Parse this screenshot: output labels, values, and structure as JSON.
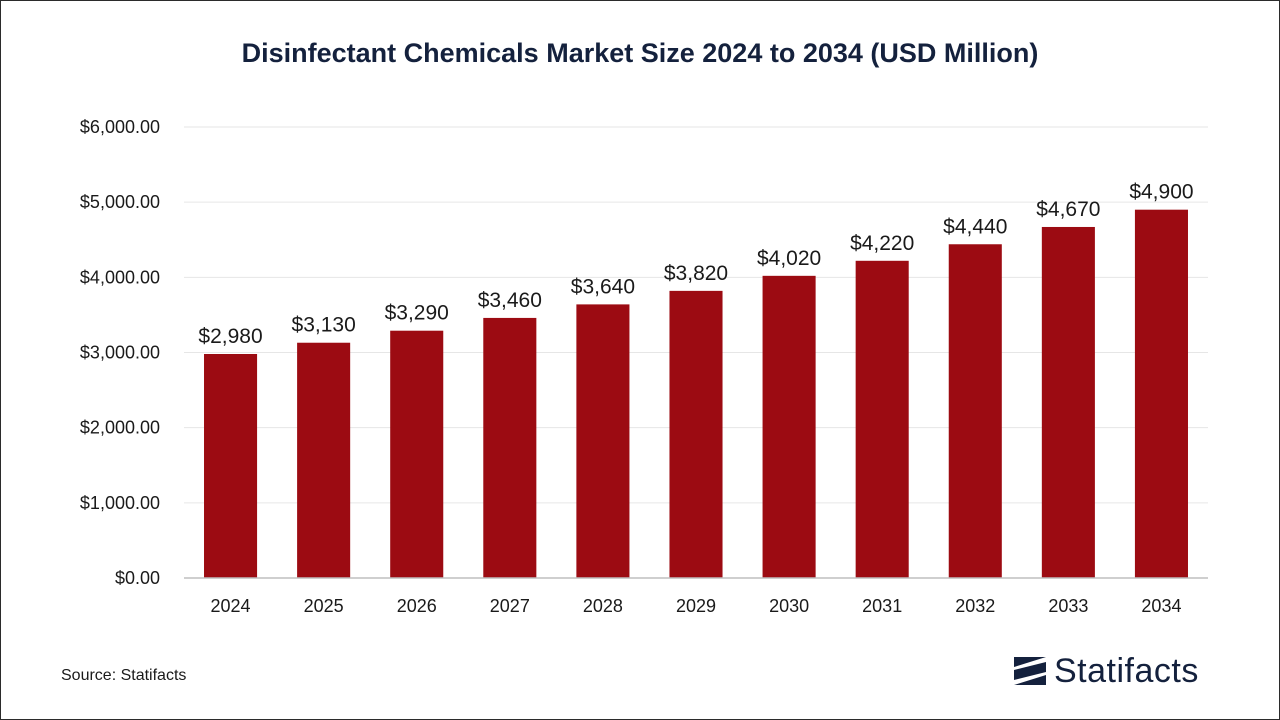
{
  "chart_data": {
    "type": "bar",
    "title": "Disinfectant Chemicals Market Size 2024 to 2034 (USD Million)",
    "xlabel": "",
    "ylabel": "",
    "categories": [
      "2024",
      "2025",
      "2026",
      "2027",
      "2028",
      "2029",
      "2030",
      "2031",
      "2032",
      "2033",
      "2034"
    ],
    "values": [
      2980,
      3130,
      3290,
      3460,
      3640,
      3820,
      4020,
      4220,
      4440,
      4670,
      4900
    ],
    "value_labels": [
      "$2,980",
      "$3,130",
      "$3,290",
      "$3,460",
      "$3,640",
      "$3,820",
      "$4,020",
      "$4,220",
      "$4,440",
      "$4,670",
      "$4,900"
    ],
    "ylim": [
      0,
      6000
    ],
    "yticks": [
      0,
      1000,
      2000,
      3000,
      4000,
      5000,
      6000
    ],
    "ytick_labels": [
      "$0.00",
      "$1,000.00",
      "$2,000.00",
      "$3,000.00",
      "$4,000.00",
      "$5,000.00",
      "$6,000.00"
    ],
    "grid": true,
    "bar_color": "#9c0b12",
    "grid_color": "#e6e6e6",
    "axis_color": "#bfbfbf"
  },
  "source": "Source: Statifacts",
  "logo": {
    "text": "Statifacts",
    "icon": "statifacts-logo-icon",
    "color": "#14213d"
  }
}
